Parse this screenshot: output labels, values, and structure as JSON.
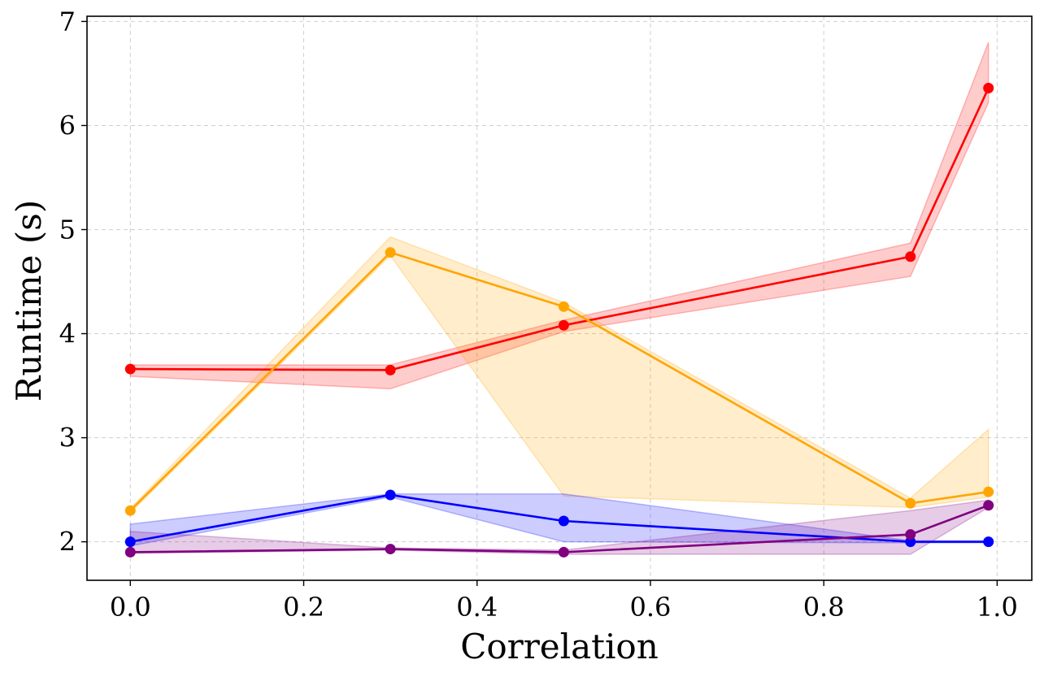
{
  "chart_data": {
    "type": "line",
    "title": "",
    "xlabel": "Correlation",
    "ylabel": "Runtime (s)",
    "xlim": [
      -0.05,
      1.04
    ],
    "ylim": [
      1.63,
      7.05
    ],
    "x_ticks": [
      0.0,
      0.2,
      0.4,
      0.6,
      0.8,
      1.0
    ],
    "x_tick_labels": [
      "0.0",
      "0.2",
      "0.4",
      "0.6",
      "0.8",
      "1.0"
    ],
    "y_ticks": [
      2,
      3,
      4,
      5,
      6,
      7
    ],
    "y_tick_labels": [
      "2",
      "3",
      "4",
      "5",
      "6",
      "7"
    ],
    "grid": true,
    "legend": "none",
    "x": [
      0.0,
      0.3,
      0.5,
      0.9,
      0.99
    ],
    "series": [
      {
        "color": "#ff0000",
        "values": [
          3.66,
          3.65,
          4.08,
          4.74,
          6.36
        ],
        "lower": [
          3.59,
          3.47,
          4.02,
          4.55,
          6.22
        ],
        "upper": [
          3.7,
          3.7,
          4.13,
          4.87,
          6.8
        ]
      },
      {
        "color": "#ffa500",
        "values": [
          2.3,
          4.78,
          4.26,
          2.37,
          2.48
        ],
        "lower": [
          2.28,
          4.75,
          2.44,
          2.33,
          2.43
        ],
        "upper": [
          2.32,
          4.93,
          4.3,
          2.42,
          3.08
        ]
      },
      {
        "color": "#0000ff",
        "values": [
          2.0,
          2.45,
          2.2,
          2.0,
          2.0
        ],
        "lower": [
          1.96,
          2.43,
          2.0,
          1.99,
          1.99
        ],
        "upper": [
          2.17,
          2.46,
          2.46,
          2.01,
          2.01
        ]
      },
      {
        "color": "#800080",
        "values": [
          1.9,
          1.93,
          1.9,
          2.07,
          2.35
        ],
        "lower": [
          1.89,
          1.92,
          1.88,
          1.88,
          2.33
        ],
        "upper": [
          2.1,
          1.94,
          1.92,
          2.3,
          2.4
        ]
      }
    ]
  }
}
